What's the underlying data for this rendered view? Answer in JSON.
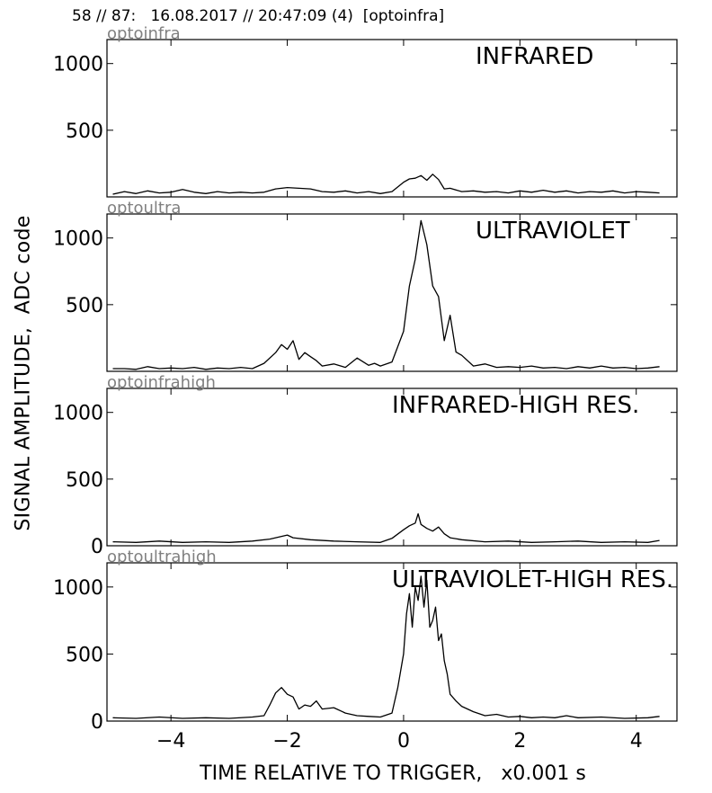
{
  "header": {
    "title": "58 // 87:   16.08.2017 // 20:47:09 (4)  [optoinfra]"
  },
  "axes_labels": {
    "ylabel": "SIGNAL AMPLITUDE,  ADC code",
    "xlabel": "TIME RELATIVE TO TRIGGER,   x0.001 s"
  },
  "colors": {
    "line": "#000000",
    "channel_label": "#808080",
    "frame": "#000000"
  },
  "chart_data": [
    {
      "type": "line",
      "channel": "optoinfra",
      "title": "INFRARED",
      "xlim": [
        -5.1,
        4.7
      ],
      "ylim": [
        0,
        1180
      ],
      "yticks": [
        500,
        1000
      ],
      "xticks": [
        -4,
        -2,
        0,
        2,
        4
      ],
      "show_xtick_labels": false,
      "series": [
        {
          "x": [
            -5.0,
            -4.8,
            -4.6,
            -4.4,
            -4.2,
            -4.0,
            -3.8,
            -3.6,
            -3.4,
            -3.2,
            -3.0,
            -2.8,
            -2.6,
            -2.4,
            -2.2,
            -2.0,
            -1.8,
            -1.6,
            -1.4,
            -1.2,
            -1.0,
            -0.8,
            -0.6,
            -0.4,
            -0.2,
            0.0,
            0.1,
            0.2,
            0.3,
            0.4,
            0.5,
            0.6,
            0.7,
            0.8,
            1.0,
            1.2,
            1.4,
            1.6,
            1.8,
            2.0,
            2.2,
            2.4,
            2.6,
            2.8,
            3.0,
            3.2,
            3.4,
            3.6,
            3.8,
            4.0,
            4.2,
            4.4
          ],
          "y": [
            20,
            40,
            25,
            45,
            30,
            35,
            55,
            35,
            25,
            40,
            30,
            35,
            30,
            35,
            60,
            70,
            65,
            60,
            40,
            35,
            45,
            30,
            40,
            25,
            40,
            110,
            135,
            140,
            160,
            125,
            170,
            130,
            60,
            65,
            40,
            45,
            35,
            40,
            30,
            45,
            35,
            50,
            35,
            45,
            30,
            40,
            35,
            45,
            30,
            40,
            35,
            30
          ]
        }
      ]
    },
    {
      "type": "line",
      "channel": "optoultra",
      "title": "ULTRAVIOLET",
      "xlim": [
        -5.1,
        4.7
      ],
      "ylim": [
        0,
        1180
      ],
      "yticks": [
        500,
        1000
      ],
      "xticks": [
        -4,
        -2,
        0,
        2,
        4
      ],
      "show_xtick_labels": false,
      "series": [
        {
          "x": [
            -5.0,
            -4.8,
            -4.6,
            -4.4,
            -4.2,
            -4.0,
            -3.8,
            -3.6,
            -3.4,
            -3.2,
            -3.0,
            -2.8,
            -2.6,
            -2.4,
            -2.2,
            -2.1,
            -2.0,
            -1.9,
            -1.8,
            -1.7,
            -1.6,
            -1.5,
            -1.4,
            -1.2,
            -1.0,
            -0.8,
            -0.6,
            -0.5,
            -0.4,
            -0.2,
            0.0,
            0.1,
            0.2,
            0.3,
            0.4,
            0.5,
            0.6,
            0.7,
            0.8,
            0.9,
            1.0,
            1.2,
            1.4,
            1.6,
            1.8,
            2.0,
            2.2,
            2.4,
            2.6,
            2.8,
            3.0,
            3.2,
            3.4,
            3.6,
            3.8,
            4.0,
            4.2,
            4.4
          ],
          "y": [
            20,
            20,
            15,
            35,
            20,
            25,
            20,
            30,
            15,
            25,
            20,
            30,
            20,
            60,
            140,
            200,
            165,
            230,
            90,
            140,
            110,
            80,
            40,
            55,
            30,
            100,
            45,
            60,
            40,
            70,
            300,
            640,
            840,
            1130,
            950,
            640,
            560,
            230,
            420,
            145,
            120,
            40,
            55,
            30,
            35,
            30,
            40,
            25,
            30,
            20,
            35,
            25,
            40,
            25,
            30,
            20,
            25,
            35
          ]
        }
      ]
    },
    {
      "type": "line",
      "channel": "optoinfrahigh",
      "title": "INFRARED-HIGH RES.",
      "xlim": [
        -5.1,
        4.7
      ],
      "ylim": [
        0,
        1180
      ],
      "yticks": [
        0,
        500,
        1000
      ],
      "xticks": [
        -4,
        -2,
        0,
        2,
        4
      ],
      "show_xtick_labels": false,
      "series": [
        {
          "x": [
            -5.0,
            -4.6,
            -4.2,
            -3.8,
            -3.4,
            -3.0,
            -2.6,
            -2.3,
            -2.1,
            -2.0,
            -1.9,
            -1.6,
            -1.2,
            -0.8,
            -0.4,
            -0.2,
            0.0,
            0.1,
            0.2,
            0.25,
            0.3,
            0.4,
            0.5,
            0.6,
            0.7,
            0.8,
            1.0,
            1.4,
            1.8,
            2.2,
            2.6,
            3.0,
            3.4,
            3.8,
            4.2,
            4.4
          ],
          "y": [
            30,
            25,
            35,
            25,
            30,
            25,
            35,
            50,
            70,
            80,
            60,
            45,
            35,
            30,
            25,
            55,
            120,
            150,
            170,
            240,
            160,
            130,
            110,
            140,
            90,
            60,
            45,
            30,
            35,
            25,
            30,
            35,
            25,
            30,
            25,
            40
          ]
        }
      ]
    },
    {
      "type": "line",
      "channel": "optoultrahigh",
      "title": "ULTRAVIOLET-HIGH RES.",
      "xlim": [
        -5.1,
        4.7
      ],
      "ylim": [
        0,
        1180
      ],
      "yticks": [
        0,
        500,
        1000
      ],
      "xticks": [
        -4,
        -2,
        0,
        2,
        4
      ],
      "show_xtick_labels": true,
      "series": [
        {
          "x": [
            -5.0,
            -4.6,
            -4.2,
            -3.8,
            -3.4,
            -3.0,
            -2.6,
            -2.4,
            -2.3,
            -2.2,
            -2.1,
            -2.0,
            -1.9,
            -1.8,
            -1.7,
            -1.6,
            -1.5,
            -1.4,
            -1.2,
            -1.0,
            -0.8,
            -0.6,
            -0.4,
            -0.2,
            -0.1,
            0.0,
            0.05,
            0.1,
            0.15,
            0.2,
            0.25,
            0.3,
            0.35,
            0.4,
            0.45,
            0.5,
            0.55,
            0.6,
            0.65,
            0.7,
            0.75,
            0.8,
            0.9,
            1.0,
            1.2,
            1.4,
            1.6,
            1.8,
            2.0,
            2.2,
            2.4,
            2.6,
            2.8,
            3.0,
            3.4,
            3.8,
            4.2,
            4.4
          ],
          "y": [
            25,
            20,
            30,
            20,
            25,
            20,
            30,
            40,
            120,
            210,
            250,
            200,
            180,
            90,
            120,
            110,
            150,
            90,
            100,
            60,
            40,
            35,
            30,
            60,
            250,
            500,
            800,
            950,
            700,
            1000,
            900,
            1080,
            850,
            1050,
            700,
            750,
            850,
            600,
            650,
            450,
            350,
            200,
            150,
            110,
            70,
            40,
            50,
            30,
            35,
            25,
            30,
            25,
            40,
            25,
            30,
            20,
            25,
            35
          ]
        }
      ]
    }
  ]
}
